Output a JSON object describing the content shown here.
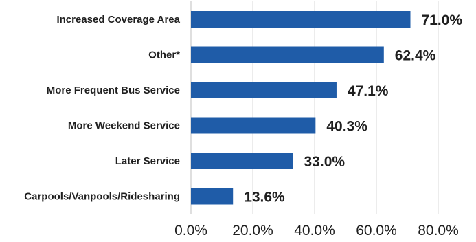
{
  "chart_data": {
    "type": "bar",
    "orientation": "horizontal",
    "categories": [
      "Increased Coverage Area",
      "Other*",
      "More Frequent Bus Service",
      "More Weekend Service",
      "Later Service",
      "Carpools/Vanpools/Ridesharing"
    ],
    "values": [
      71.0,
      62.4,
      47.1,
      40.3,
      33.0,
      13.6
    ],
    "value_labels": [
      "71.0%",
      "62.4%",
      "47.1%",
      "40.3%",
      "33.0%",
      "13.6%"
    ],
    "xlim": [
      0,
      80
    ],
    "ticks": [
      0,
      20,
      40,
      60,
      80
    ],
    "tick_labels": [
      "0.0%",
      "20.0%",
      "40.0%",
      "60.0%",
      "80.0%"
    ],
    "grid": true,
    "legend": "none",
    "bar_color": "#1f5ca8",
    "title": "",
    "xlabel": "",
    "ylabel": ""
  }
}
